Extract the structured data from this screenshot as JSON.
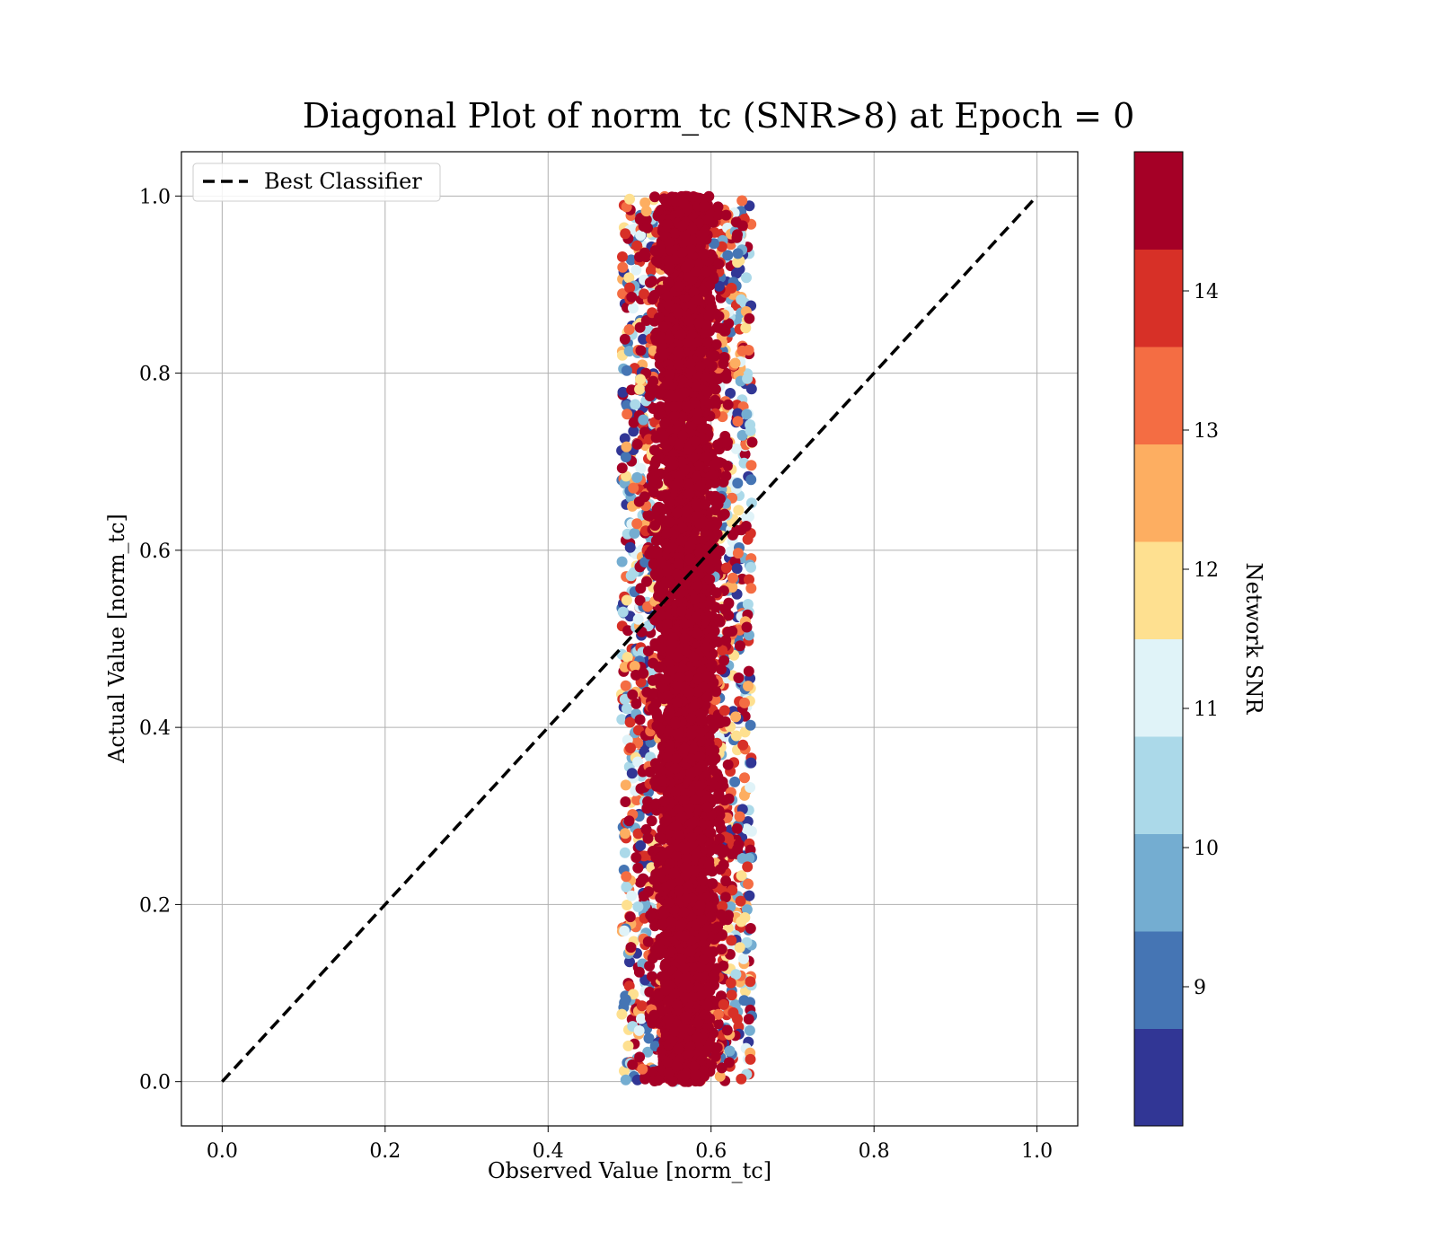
{
  "chart_data": {
    "type": "scatter",
    "title": "Diagonal Plot of norm_tc (SNR>8) at Epoch = 0",
    "xlabel": "Observed Value [norm_tc]",
    "ylabel": "Actual Value [norm_tc]",
    "xlim": [
      -0.05,
      1.05
    ],
    "ylim": [
      -0.05,
      1.05
    ],
    "xticks": [
      "0.0",
      "0.2",
      "0.4",
      "0.6",
      "0.8",
      "1.0"
    ],
    "yticks": [
      "0.0",
      "0.2",
      "0.4",
      "0.6",
      "0.8",
      "1.0"
    ],
    "grid": true,
    "legend": {
      "placement": "upper-left",
      "entries": [
        "Best Classifier"
      ]
    },
    "reference_line": {
      "name": "Best Classifier",
      "style": "dashed",
      "color": "#000000",
      "x": [
        0.0,
        1.0
      ],
      "y": [
        0.0,
        1.0
      ]
    },
    "scatter": {
      "x_center": 0.57,
      "x_core_range": [
        0.51,
        0.63
      ],
      "x_outer_range": [
        0.49,
        0.65
      ],
      "y_range": [
        0.0,
        1.0
      ],
      "dominant_color": "#a50026"
    },
    "colorbar": {
      "label": "Network SNR",
      "range": [
        8,
        15
      ],
      "ticks": [
        "9",
        "10",
        "11",
        "12",
        "13",
        "14"
      ],
      "colors": [
        "#313695",
        "#4575b4",
        "#74add1",
        "#abd9e9",
        "#e0f3f8",
        "#fee090",
        "#fdae61",
        "#f46d43",
        "#d73027",
        "#a50026"
      ]
    }
  }
}
